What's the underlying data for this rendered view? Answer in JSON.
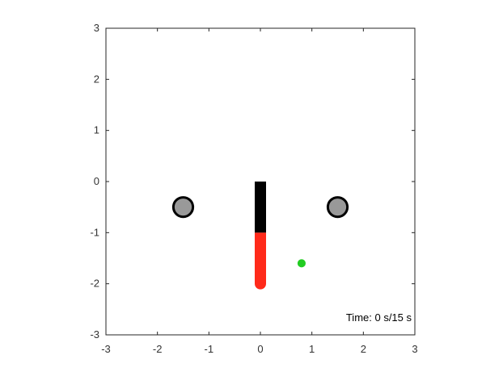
{
  "scene": {
    "axes": {
      "x_range": [
        -3,
        3
      ],
      "y_range": [
        -3,
        3
      ],
      "x_ticks": [
        "-3",
        "-2",
        "-1",
        "0",
        "1",
        "2",
        "3"
      ],
      "y_ticks": [
        "3",
        "2",
        "1",
        "0",
        "-1",
        "-2",
        "-3"
      ],
      "grid": false
    },
    "time_label": "Time: 0 s/15 s",
    "obstacles": [
      {
        "name": "left-obstacle",
        "x": -1.5,
        "y": -0.5,
        "radius": 0.19,
        "color": "#999999"
      },
      {
        "name": "right-obstacle",
        "x": 1.5,
        "y": -0.5,
        "radius": 0.19,
        "color": "#999999"
      }
    ],
    "arm": {
      "base": {
        "x": 0,
        "y": 0
      },
      "joint": {
        "x": 0,
        "y": -1
      },
      "tip": {
        "x": 0,
        "y": -2
      },
      "upper_color": "#000000",
      "lower_color": "#ff2a1a"
    },
    "target": {
      "x": 0.8,
      "y": -1.6,
      "radius": 0.11,
      "color": "#22cc22"
    }
  }
}
